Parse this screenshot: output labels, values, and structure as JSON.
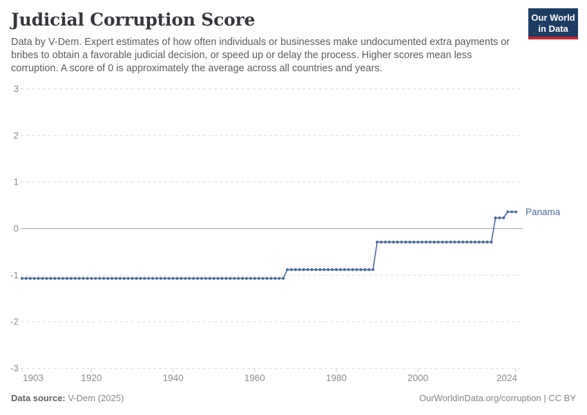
{
  "header": {
    "title": "Judicial Corruption Score",
    "subtitle": "Data by V-Dem. Expert estimates of how often individuals or businesses make undocumented extra payments or bribes to obtain a favorable judicial decision, or speed up or delay the process. Higher scores mean less corruption. A score of 0 is approximately the average across all countries and years.",
    "logo": {
      "line1": "Our World",
      "line2": "in Data"
    }
  },
  "chart_data": {
    "type": "line",
    "title": "Judicial Corruption Score",
    "xlabel": "",
    "ylabel": "",
    "xlim": [
      1903,
      2024
    ],
    "ylim": [
      -3,
      3
    ],
    "x_ticks": [
      1903,
      1920,
      1940,
      1960,
      1980,
      2000,
      2024
    ],
    "y_ticks": [
      3,
      2,
      1,
      0,
      -1,
      -2,
      -3
    ],
    "grid": "horizontal-dashed",
    "legend_position": "end-of-line-label",
    "series": [
      {
        "name": "Panama",
        "color": "#4c6a9c",
        "steps": [
          {
            "from_year": 1903,
            "to_year": 1967,
            "value": -1.07
          },
          {
            "from_year": 1968,
            "to_year": 1989,
            "value": -0.88
          },
          {
            "from_year": 1990,
            "to_year": 2018,
            "value": -0.29
          },
          {
            "from_year": 2019,
            "to_year": 2021,
            "value": 0.23
          },
          {
            "from_year": 2022,
            "to_year": 2024,
            "value": 0.36
          }
        ]
      }
    ]
  },
  "footer": {
    "source_label": "Data source:",
    "source_value": " V-Dem (2025)",
    "attribution": "OurWorldinData.org/corruption | CC BY"
  },
  "colors": {
    "series_line": "#4c6a9c",
    "series_label": "#4c6a9c",
    "gridline": "#dcdcdc",
    "zero_line": "#a6a6a6",
    "tick_mark": "#cccccc",
    "axis_label": "#8c8c8c",
    "logo_bg": "#1d3d63",
    "logo_bar": "#c0272d",
    "title_text": "#35373c",
    "subtitle_text": "#5b5b5b"
  }
}
